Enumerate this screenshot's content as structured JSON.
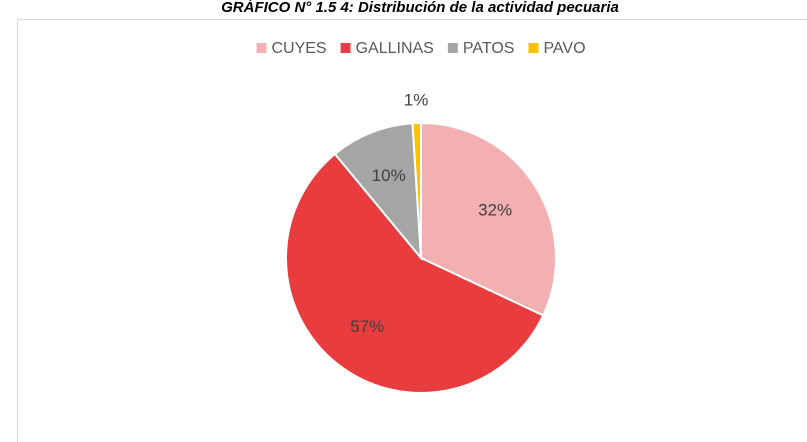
{
  "chart_data": {
    "type": "pie",
    "title": "GRÁFICO N° 1.5 4: Distribución de la actividad pecuaria",
    "categories": [
      "CUYES",
      "GALLINAS",
      "PATOS",
      "PAVO"
    ],
    "values": [
      32,
      57,
      10,
      1
    ],
    "value_labels": [
      "32%",
      "57%",
      "10%",
      "1%"
    ],
    "colors": [
      "#f4b0b1",
      "#e83c3f",
      "#a5a5a5",
      "#ffc000"
    ],
    "legend": "top"
  }
}
